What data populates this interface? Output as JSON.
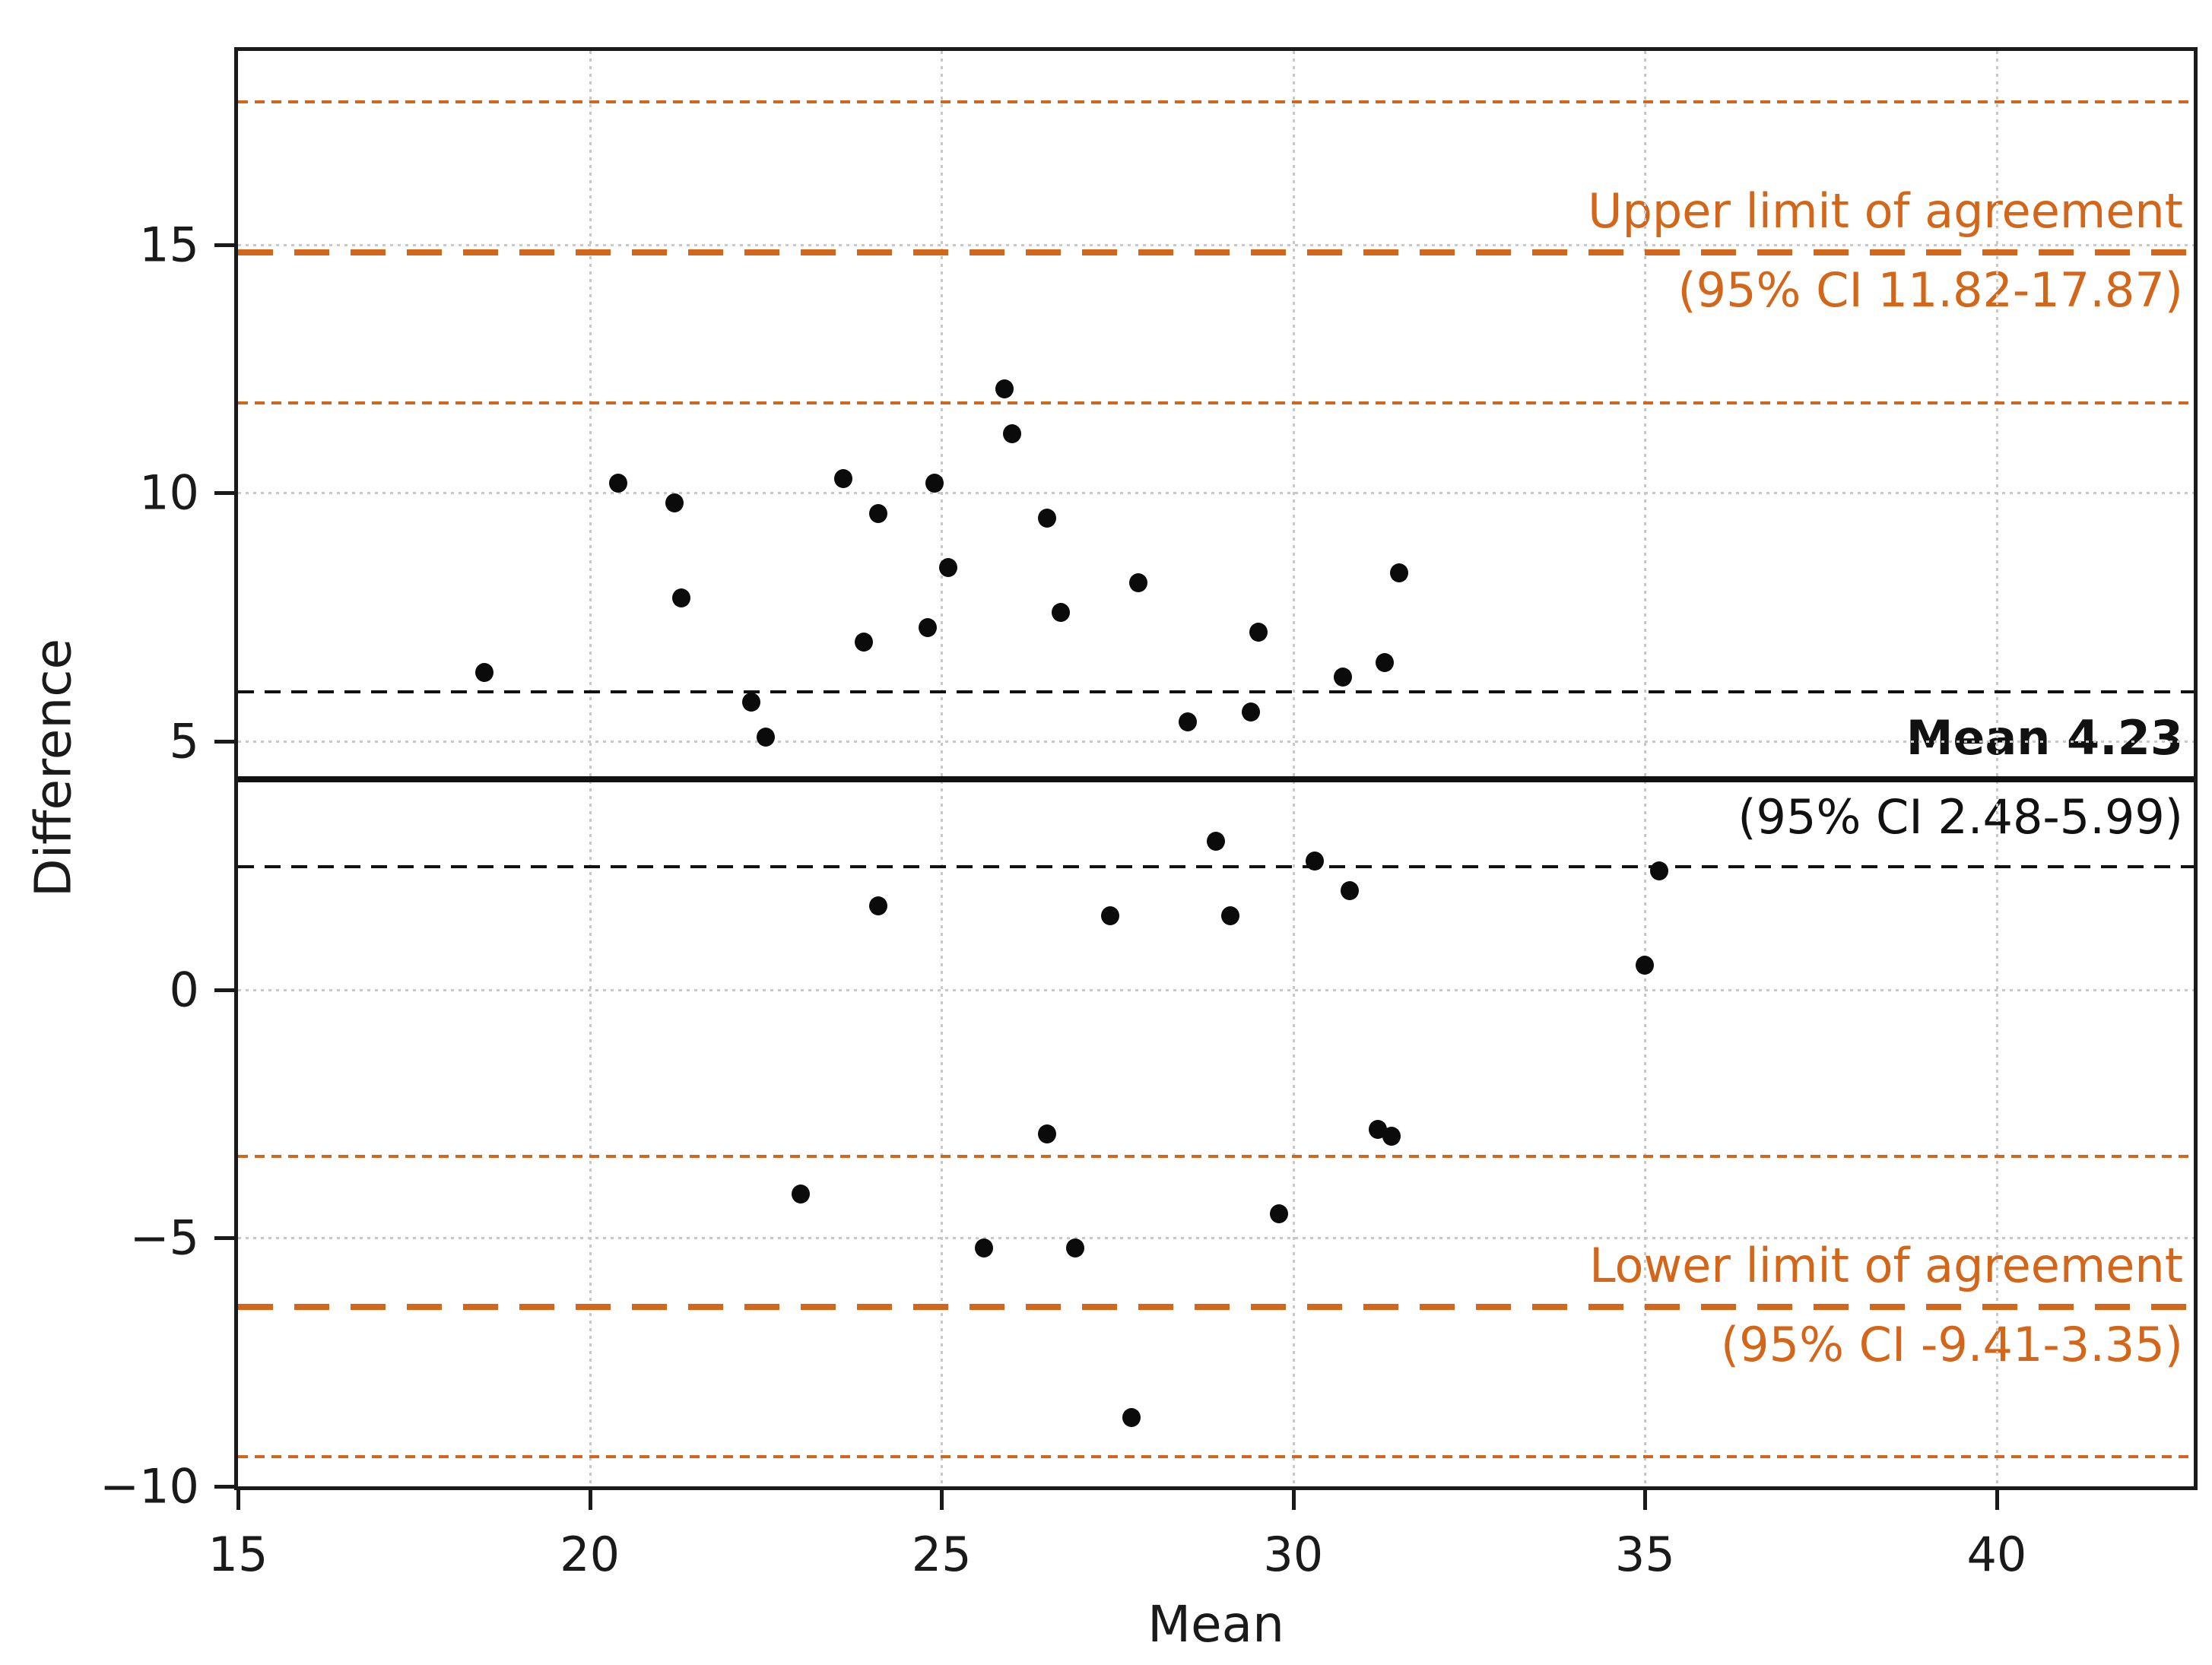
{
  "colors": {
    "accent_orange": "#d4661a",
    "line_black": "#111111",
    "grid_gray": "#c8c8c8",
    "point_black": "#0b0b0b"
  },
  "chart_data": {
    "type": "scatter",
    "title": "",
    "xlabel": "Mean",
    "ylabel": "Difference",
    "xlim": [
      15,
      42.8
    ],
    "ylim": [
      -10,
      18.9
    ],
    "x_ticks": [
      15,
      20,
      25,
      30,
      35,
      40
    ],
    "y_ticks": [
      -10,
      -5,
      0,
      5,
      10,
      15
    ],
    "grid": true,
    "legend_position": "none",
    "points": [
      [
        18.5,
        6.4
      ],
      [
        20.4,
        10.2
      ],
      [
        21.2,
        9.8
      ],
      [
        21.3,
        7.9
      ],
      [
        22.3,
        5.8
      ],
      [
        22.5,
        5.1
      ],
      [
        23.6,
        10.3
      ],
      [
        23.9,
        7.0
      ],
      [
        24.1,
        9.6
      ],
      [
        24.8,
        7.3
      ],
      [
        24.9,
        10.2
      ],
      [
        25.1,
        8.5
      ],
      [
        25.9,
        12.1
      ],
      [
        26.0,
        11.2
      ],
      [
        26.5,
        9.5
      ],
      [
        26.7,
        7.6
      ],
      [
        27.8,
        8.2
      ],
      [
        28.5,
        5.4
      ],
      [
        29.4,
        5.6
      ],
      [
        29.5,
        7.2
      ],
      [
        30.7,
        6.3
      ],
      [
        31.3,
        6.6
      ],
      [
        31.5,
        8.4
      ],
      [
        24.1,
        1.7
      ],
      [
        27.4,
        1.5
      ],
      [
        28.9,
        3.0
      ],
      [
        29.1,
        1.5
      ],
      [
        30.3,
        2.6
      ],
      [
        30.8,
        2.0
      ],
      [
        35.0,
        0.5
      ],
      [
        35.2,
        2.4
      ],
      [
        23.0,
        -4.1
      ],
      [
        25.6,
        -5.2
      ],
      [
        26.5,
        -2.9
      ],
      [
        26.9,
        -5.2
      ],
      [
        27.7,
        -8.6
      ],
      [
        29.8,
        -4.5
      ],
      [
        31.2,
        -2.8
      ],
      [
        31.4,
        -2.95
      ]
    ],
    "mean_line": {
      "value": 4.23,
      "ci": [
        2.48,
        5.99
      ],
      "label": "Mean 4.23",
      "ci_label": "(95% CI 2.48-5.99)",
      "color": "#111111"
    },
    "upper_loa": {
      "value": 14.85,
      "ci": [
        11.82,
        17.87
      ],
      "label": "Upper limit of agreement",
      "ci_label": "(95% CI 11.82-17.87)",
      "color": "#d4661a"
    },
    "lower_loa": {
      "value": -6.38,
      "ci": [
        -9.41,
        -3.35
      ],
      "label": "Lower limit of agreement",
      "ci_label": "(95% CI -9.41-3.35)",
      "color": "#d4661a"
    }
  }
}
